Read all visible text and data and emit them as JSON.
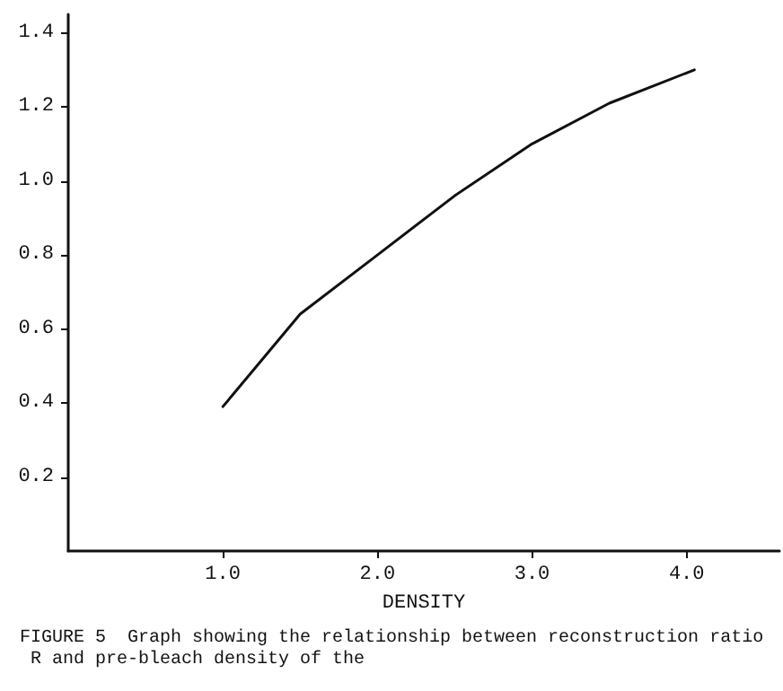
{
  "chart_data": {
    "type": "line",
    "xlabel": "DENSITY",
    "x": [
      1.0,
      1.5,
      2.0,
      2.5,
      3.0,
      3.5,
      4.05
    ],
    "series": [
      {
        "color": "#111111",
        "values": [
          0.39,
          0.64,
          0.8,
          0.96,
          1.1,
          1.21,
          1.3
        ]
      }
    ],
    "xlim": [
      0,
      4.6
    ],
    "xticks": [
      {
        "value": 1,
        "label": "1.0"
      },
      {
        "value": 2,
        "label": "2.0"
      },
      {
        "value": 3,
        "label": "3.0"
      },
      {
        "value": 4,
        "label": "4.0"
      }
    ],
    "ylim": [
      0,
      1.45
    ],
    "yticks": [
      {
        "value": 0.2,
        "label": "0.2"
      },
      {
        "value": 0.4,
        "label": "0.4"
      },
      {
        "value": 0.6,
        "label": "0.6"
      },
      {
        "value": 0.8,
        "label": "0.8"
      },
      {
        "value": 1.0,
        "label": "1.0"
      },
      {
        "value": 1.2,
        "label": "1.2"
      },
      {
        "value": 1.4,
        "label": "1.4"
      }
    ],
    "grid": false,
    "marker": "none",
    "line_style": "solid",
    "annotations": [
      "FIGURE 5  Graph showing the relationship between reconstruction ratio R and pre-bleach density of the"
    ]
  }
}
